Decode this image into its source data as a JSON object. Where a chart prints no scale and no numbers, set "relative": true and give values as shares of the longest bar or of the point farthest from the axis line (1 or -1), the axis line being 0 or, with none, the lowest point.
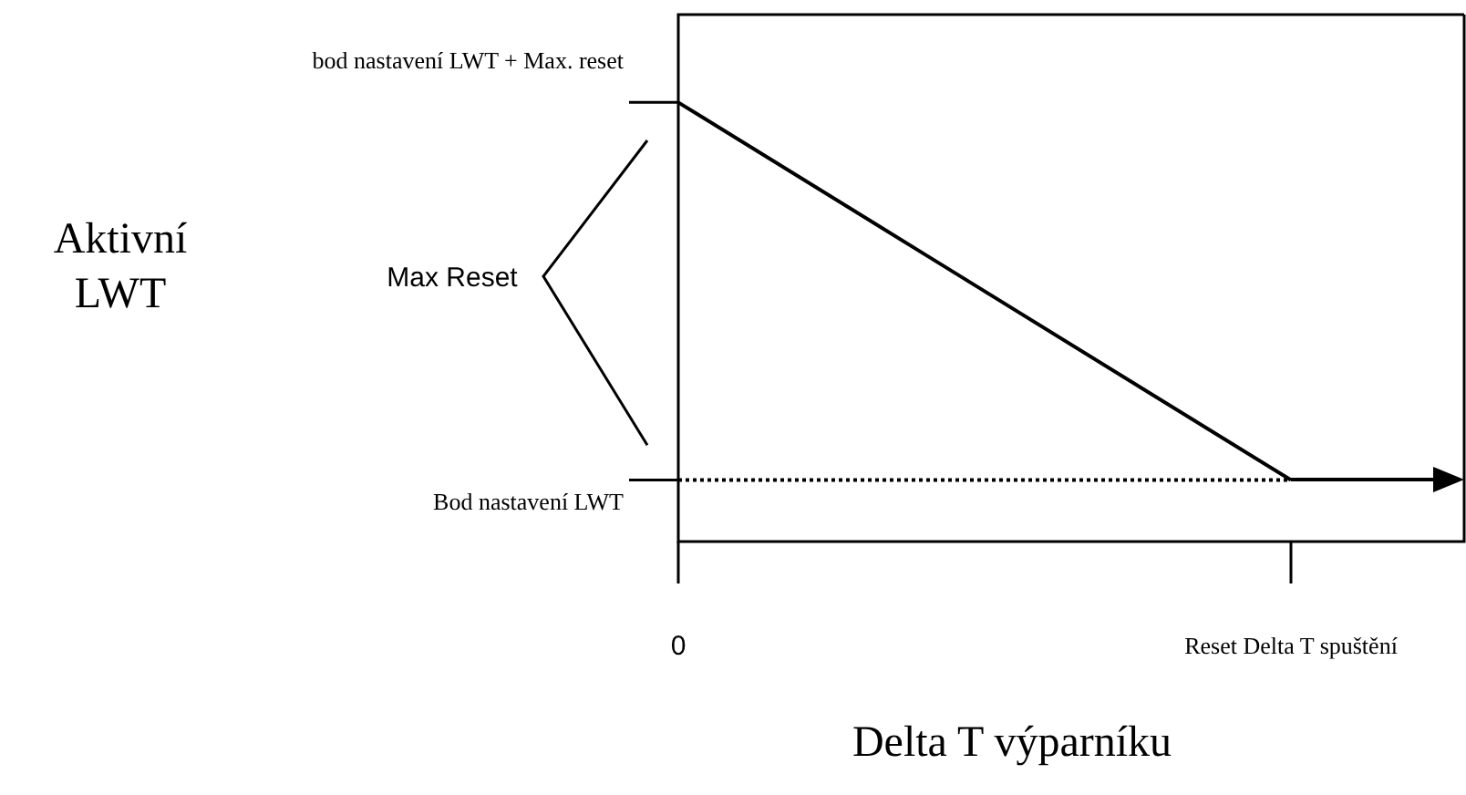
{
  "chart_data": {
    "type": "line",
    "relative": true,
    "xlabel": "Delta T výparníku",
    "categories": [
      "0",
      "Reset Delta T spuštění"
    ],
    "annotations": [
      {
        "text": "bod nastavení LWT + Max. reset",
        "x": "0",
        "y": 1
      },
      {
        "text": "Bod nastavení LWT",
        "x": "0",
        "y": 0.14
      },
      "Aktivní LWT",
      "Max Reset"
    ],
    "series": [
      {
        "values": [
          1,
          0.14
        ],
        "color": "#000000"
      }
    ],
    "ref_lines": [
      {
        "axis": "y",
        "value": 0.14,
        "color": "#000000",
        "line_style": "dotted"
      }
    ],
    "legend": false,
    "marker": "none",
    "line_style": "solid"
  }
}
